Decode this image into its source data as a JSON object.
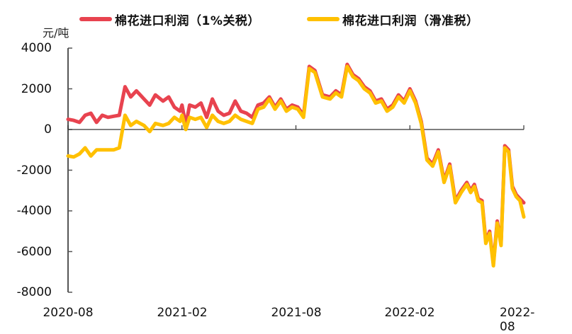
{
  "legend": [
    {
      "label": "棉花进口利润（1%关税）",
      "color": "#E8434F"
    },
    {
      "label": "棉花进口利润（滑准税）",
      "color": "#FFC000"
    }
  ],
  "unit_label": "元/吨",
  "y_ticks": [
    "4000",
    "2000",
    "0",
    "-2000",
    "-4000",
    "-6000",
    "-8000"
  ],
  "x_ticks": [
    "2020-08",
    "2021-02",
    "2021-08",
    "2022-02",
    "2022-08"
  ],
  "chart_data": {
    "type": "line",
    "title": "",
    "xlabel": "",
    "ylabel": "元/吨",
    "ylim": [
      -8000,
      4000
    ],
    "xlim": [
      "2020-08",
      "2022-08"
    ],
    "grid": false,
    "legend_position": "top",
    "x_tick_labels": [
      "2020-08",
      "2021-02",
      "2021-08",
      "2022-02",
      "2022-08"
    ],
    "y_tick_labels": [
      4000,
      2000,
      0,
      -2000,
      -4000,
      -6000,
      -8000
    ],
    "x_unit": "months since 2020-08",
    "series": [
      {
        "name": "棉花进口利润（1%关税）",
        "color": "#E8434F",
        "x": [
          0,
          0.3,
          0.6,
          0.9,
          1.2,
          1.5,
          1.8,
          2.1,
          2.4,
          2.7,
          3.0,
          3.3,
          3.6,
          3.8,
          4.0,
          4.3,
          4.6,
          5.0,
          5.3,
          5.6,
          5.9,
          6.0,
          6.2,
          6.4,
          6.7,
          7.0,
          7.3,
          7.6,
          7.9,
          8.2,
          8.5,
          8.8,
          9.1,
          9.4,
          9.7,
          10.0,
          10.3,
          10.6,
          10.9,
          11.2,
          11.5,
          11.8,
          12.1,
          12.4,
          12.7,
          13.0,
          13.4,
          13.8,
          14.1,
          14.4,
          14.7,
          15.0,
          15.3,
          15.6,
          15.9,
          16.2,
          16.5,
          16.8,
          17.1,
          17.4,
          17.7,
          18.0,
          18.3,
          18.6,
          18.9,
          19.2,
          19.5,
          19.8,
          20.1,
          20.4,
          20.7,
          21.0,
          21.2,
          21.4,
          21.6,
          21.8,
          22.0,
          22.2,
          22.4,
          22.6,
          22.8,
          23.0,
          23.2,
          23.4,
          23.6,
          23.8,
          24.0
        ],
        "values": [
          500,
          450,
          350,
          700,
          800,
          350,
          700,
          600,
          650,
          700,
          2100,
          1600,
          1900,
          1700,
          1500,
          1200,
          1700,
          1400,
          1600,
          1100,
          900,
          1200,
          200,
          1200,
          1100,
          1300,
          600,
          1500,
          900,
          700,
          800,
          1400,
          900,
          800,
          600,
          1200,
          1300,
          1600,
          1100,
          1500,
          1000,
          1200,
          1100,
          700,
          3100,
          2900,
          1700,
          1600,
          1900,
          1700,
          3200,
          2700,
          2500,
          2100,
          1900,
          1400,
          1500,
          1000,
          1200,
          1700,
          1400,
          2000,
          1400,
          400,
          -1400,
          -1700,
          -1000,
          -2500,
          -1700,
          -3500,
          -3000,
          -2600,
          -3000,
          -2700,
          -3400,
          -3500,
          -5500,
          -5000,
          -6600,
          -4500,
          -5600,
          -800,
          -1000,
          -2800,
          -3200,
          -3400,
          -3600
        ]
      },
      {
        "name": "棉花进口利润（滑准税）",
        "color": "#FFC000",
        "x": [
          0,
          0.3,
          0.6,
          0.9,
          1.2,
          1.5,
          1.8,
          2.1,
          2.4,
          2.7,
          3.0,
          3.3,
          3.6,
          3.8,
          4.0,
          4.3,
          4.6,
          5.0,
          5.3,
          5.6,
          5.9,
          6.0,
          6.2,
          6.4,
          6.7,
          7.0,
          7.3,
          7.6,
          7.9,
          8.2,
          8.5,
          8.8,
          9.1,
          9.4,
          9.7,
          10.0,
          10.3,
          10.6,
          10.9,
          11.2,
          11.5,
          11.8,
          12.1,
          12.4,
          12.7,
          13.0,
          13.4,
          13.8,
          14.1,
          14.4,
          14.7,
          15.0,
          15.3,
          15.6,
          15.9,
          16.2,
          16.5,
          16.8,
          17.1,
          17.4,
          17.7,
          18.0,
          18.3,
          18.6,
          18.9,
          19.2,
          19.5,
          19.8,
          20.1,
          20.4,
          20.7,
          21.0,
          21.2,
          21.4,
          21.6,
          21.8,
          22.0,
          22.2,
          22.4,
          22.6,
          22.8,
          23.0,
          23.2,
          23.4,
          23.6,
          23.8,
          24.0
        ],
        "values": [
          -1300,
          -1350,
          -1200,
          -900,
          -1300,
          -1000,
          -1000,
          -1000,
          -1000,
          -900,
          700,
          200,
          400,
          300,
          200,
          -100,
          300,
          200,
          300,
          600,
          400,
          700,
          0,
          600,
          500,
          600,
          100,
          700,
          400,
          300,
          400,
          700,
          500,
          400,
          300,
          1000,
          1100,
          1500,
          1000,
          1400,
          900,
          1100,
          1000,
          600,
          3000,
          2800,
          1600,
          1500,
          1800,
          1600,
          3100,
          2600,
          2400,
          2000,
          1800,
          1300,
          1400,
          900,
          1100,
          1600,
          1300,
          1900,
          1300,
          300,
          -1500,
          -1800,
          -1100,
          -2600,
          -1800,
          -3600,
          -3100,
          -2700,
          -3100,
          -2800,
          -3500,
          -3600,
          -5600,
          -5100,
          -6700,
          -4600,
          -5700,
          -900,
          -1100,
          -2900,
          -3300,
          -3500,
          -4300
        ]
      }
    ]
  }
}
